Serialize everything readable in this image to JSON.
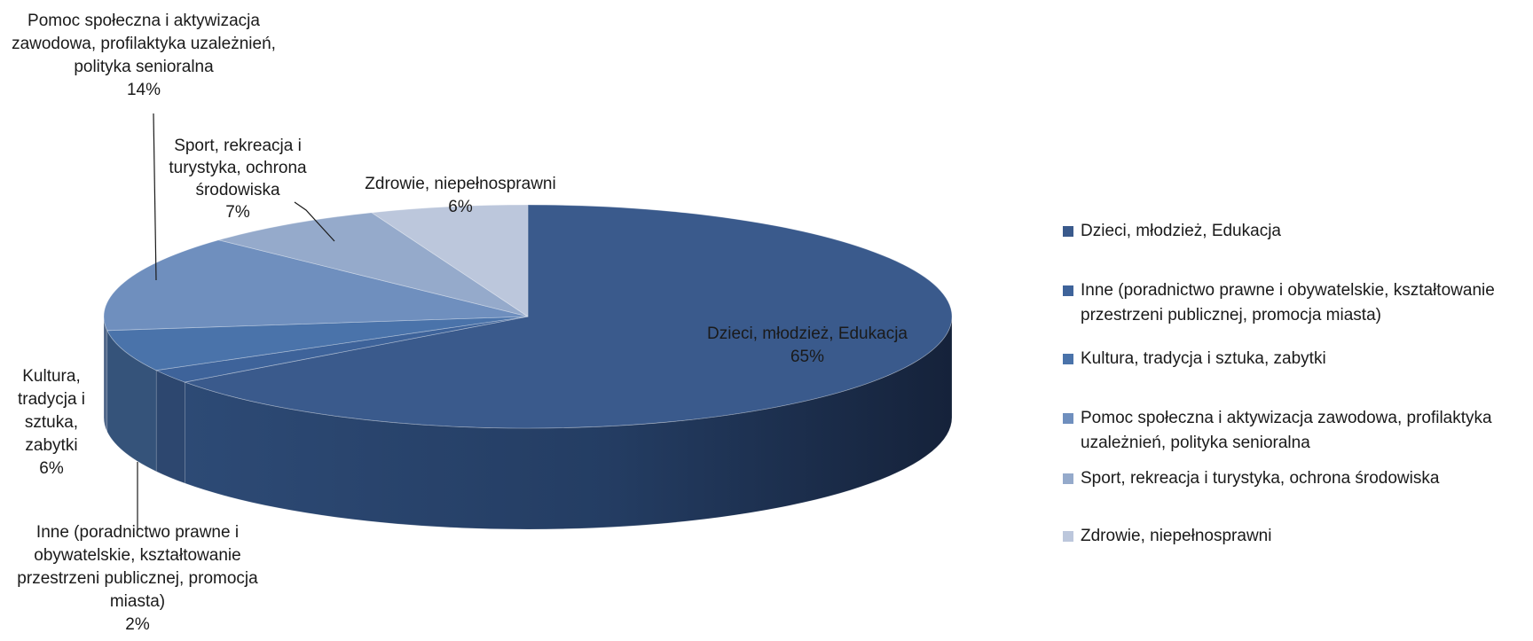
{
  "chart_data": {
    "type": "pie",
    "style": "3d",
    "slices": [
      {
        "label": "Dzieci, młodzież, Edukacja",
        "value": 65,
        "pct_label": "65%",
        "color": "#3a5a8c"
      },
      {
        "label": "Inne (poradnictwo prawne i obywatelskie, kształtowanie przestrzeni publicznej, promocja miasta)",
        "value": 2,
        "pct_label": "2%",
        "color": "#3e639a"
      },
      {
        "label": "Kultura, tradycja i sztuka, zabytki",
        "value": 6,
        "pct_label": "6%",
        "color": "#4a73aa"
      },
      {
        "label": "Pomoc społeczna i aktywizacja zawodowa, profilaktyka uzależnień, polityka senioralna",
        "value": 14,
        "pct_label": "14%",
        "color": "#6f8fbe"
      },
      {
        "label": "Sport, rekreacja i turystyka, ochrona środowiska",
        "value": 7,
        "pct_label": "7%",
        "color": "#95aacb"
      },
      {
        "label": "Zdrowie, niepełnosprawni",
        "value": 6,
        "pct_label": "6%",
        "color": "#bcc7dc"
      }
    ],
    "legend_position": "right",
    "data_labels": [
      [
        "Dzieci, młodzież, Edukacja",
        "65%"
      ],
      [
        "Inne (poradnictwo prawne i",
        "obywatelskie, kształtowanie",
        "przestrzeni publicznej, promocja",
        "miasta)",
        "2%"
      ],
      [
        "Kultura,",
        "tradycja i",
        "sztuka,",
        "zabytki",
        "6%"
      ],
      [
        "Pomoc społeczna i aktywizacja",
        "zawodowa, profilaktyka uzależnień,",
        "polityka senioralna",
        "14%"
      ],
      [
        "Sport, rekreacja i",
        "turystyka, ochrona",
        "środowiska",
        "7%"
      ],
      [
        "Zdrowie, niepełnosprawni",
        "6%"
      ]
    ],
    "legend_lines": [
      [
        "Dzieci, młodzież, Edukacja"
      ],
      [
        "Inne (poradnictwo prawne i obywatelskie, kształtowanie",
        "przestrzeni publicznej, promocja miasta)"
      ],
      [
        "Kultura, tradycja i sztuka, zabytki"
      ],
      [
        "Pomoc społeczna i aktywizacja zawodowa, profilaktyka",
        "uzależnień, polityka senioralna"
      ],
      [
        "Sport, rekreacja i turystyka, ochrona środowiska"
      ],
      [
        "Zdrowie, niepełnosprawni"
      ]
    ]
  }
}
